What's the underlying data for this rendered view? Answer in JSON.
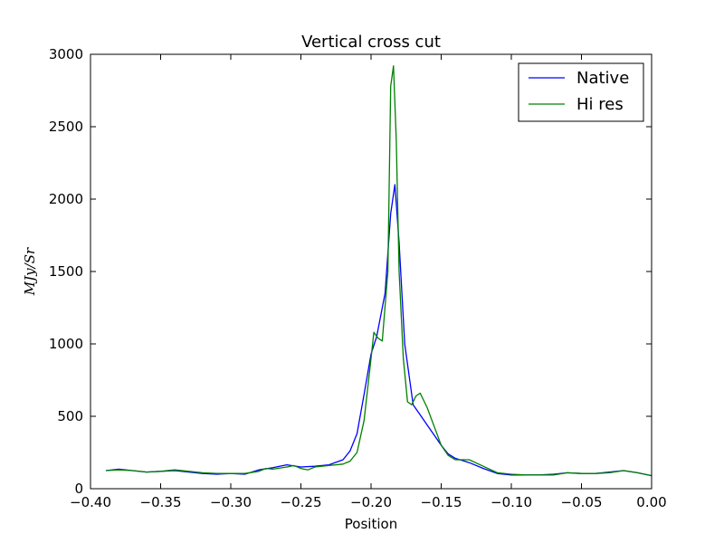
{
  "chart_data": {
    "type": "line",
    "title": "Vertical cross cut",
    "xlabel": "Position",
    "ylabel": "MJy/Sr",
    "xlim": [
      -0.4,
      0.0
    ],
    "ylim": [
      0,
      3000
    ],
    "xticks": [
      "−0.40",
      "−0.35",
      "−0.30",
      "−0.25",
      "−0.20",
      "−0.15",
      "−0.10",
      "−0.05",
      "0.00"
    ],
    "yticks": [
      "0",
      "500",
      "1000",
      "1500",
      "2000",
      "2500",
      "3000"
    ],
    "grid": false,
    "legend_position": "top-right",
    "series": [
      {
        "name": "Native",
        "color": "#0000ff",
        "x": [
          -0.389,
          -0.38,
          -0.37,
          -0.36,
          -0.35,
          -0.34,
          -0.33,
          -0.32,
          -0.31,
          -0.3,
          -0.29,
          -0.28,
          -0.27,
          -0.26,
          -0.25,
          -0.24,
          -0.23,
          -0.22,
          -0.215,
          -0.21,
          -0.205,
          -0.2,
          -0.196,
          -0.19,
          -0.186,
          -0.183,
          -0.18,
          -0.176,
          -0.17,
          -0.165,
          -0.16,
          -0.155,
          -0.15,
          -0.145,
          -0.14,
          -0.135,
          -0.13,
          -0.12,
          -0.11,
          -0.1,
          -0.09,
          -0.08,
          -0.07,
          -0.06,
          -0.05,
          -0.04,
          -0.03,
          -0.02,
          -0.01,
          0.0
        ],
        "y": [
          125,
          135,
          125,
          115,
          120,
          125,
          115,
          105,
          100,
          105,
          100,
          130,
          145,
          165,
          150,
          155,
          165,
          200,
          260,
          380,
          650,
          930,
          1050,
          1350,
          1900,
          2100,
          1700,
          1000,
          580,
          510,
          440,
          370,
          300,
          240,
          210,
          195,
          180,
          140,
          105,
          95,
          95,
          95,
          100,
          110,
          105,
          105,
          115,
          125,
          110,
          90
        ]
      },
      {
        "name": "Hi res",
        "color": "#008000",
        "x": [
          -0.389,
          -0.38,
          -0.37,
          -0.36,
          -0.35,
          -0.34,
          -0.33,
          -0.32,
          -0.31,
          -0.3,
          -0.29,
          -0.28,
          -0.275,
          -0.27,
          -0.26,
          -0.255,
          -0.25,
          -0.245,
          -0.24,
          -0.23,
          -0.22,
          -0.215,
          -0.21,
          -0.205,
          -0.2,
          -0.198,
          -0.195,
          -0.192,
          -0.188,
          -0.186,
          -0.184,
          -0.182,
          -0.18,
          -0.177,
          -0.174,
          -0.171,
          -0.168,
          -0.165,
          -0.16,
          -0.155,
          -0.15,
          -0.145,
          -0.14,
          -0.135,
          -0.13,
          -0.12,
          -0.11,
          -0.1,
          -0.09,
          -0.08,
          -0.07,
          -0.06,
          -0.05,
          -0.04,
          -0.03,
          -0.02,
          -0.01,
          0.0
        ],
        "y": [
          125,
          130,
          125,
          115,
          120,
          130,
          120,
          110,
          105,
          105,
          105,
          120,
          140,
          135,
          150,
          160,
          140,
          130,
          150,
          160,
          170,
          190,
          250,
          470,
          900,
          1080,
          1040,
          1020,
          1500,
          2780,
          2920,
          2400,
          1500,
          900,
          600,
          580,
          640,
          660,
          560,
          430,
          300,
          230,
          200,
          200,
          200,
          155,
          110,
          100,
          95,
          95,
          95,
          110,
          105,
          105,
          110,
          125,
          110,
          90
        ]
      }
    ]
  }
}
